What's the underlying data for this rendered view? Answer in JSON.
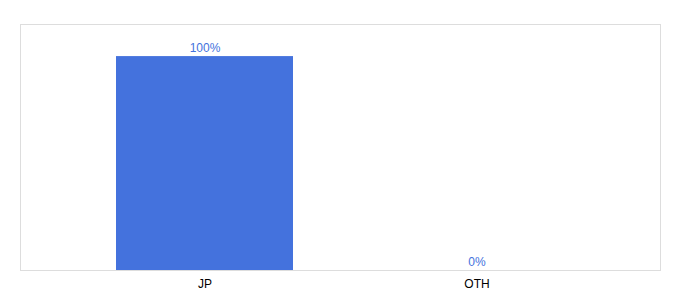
{
  "chart_data": {
    "type": "bar",
    "categories": [
      "JP",
      "OTH"
    ],
    "values": [
      100,
      0
    ],
    "value_labels": [
      "100%",
      "0%"
    ],
    "color": "#4472dd",
    "ylim": [
      0,
      115
    ],
    "data_labels": true,
    "tick_labels": "x",
    "grid": false
  }
}
